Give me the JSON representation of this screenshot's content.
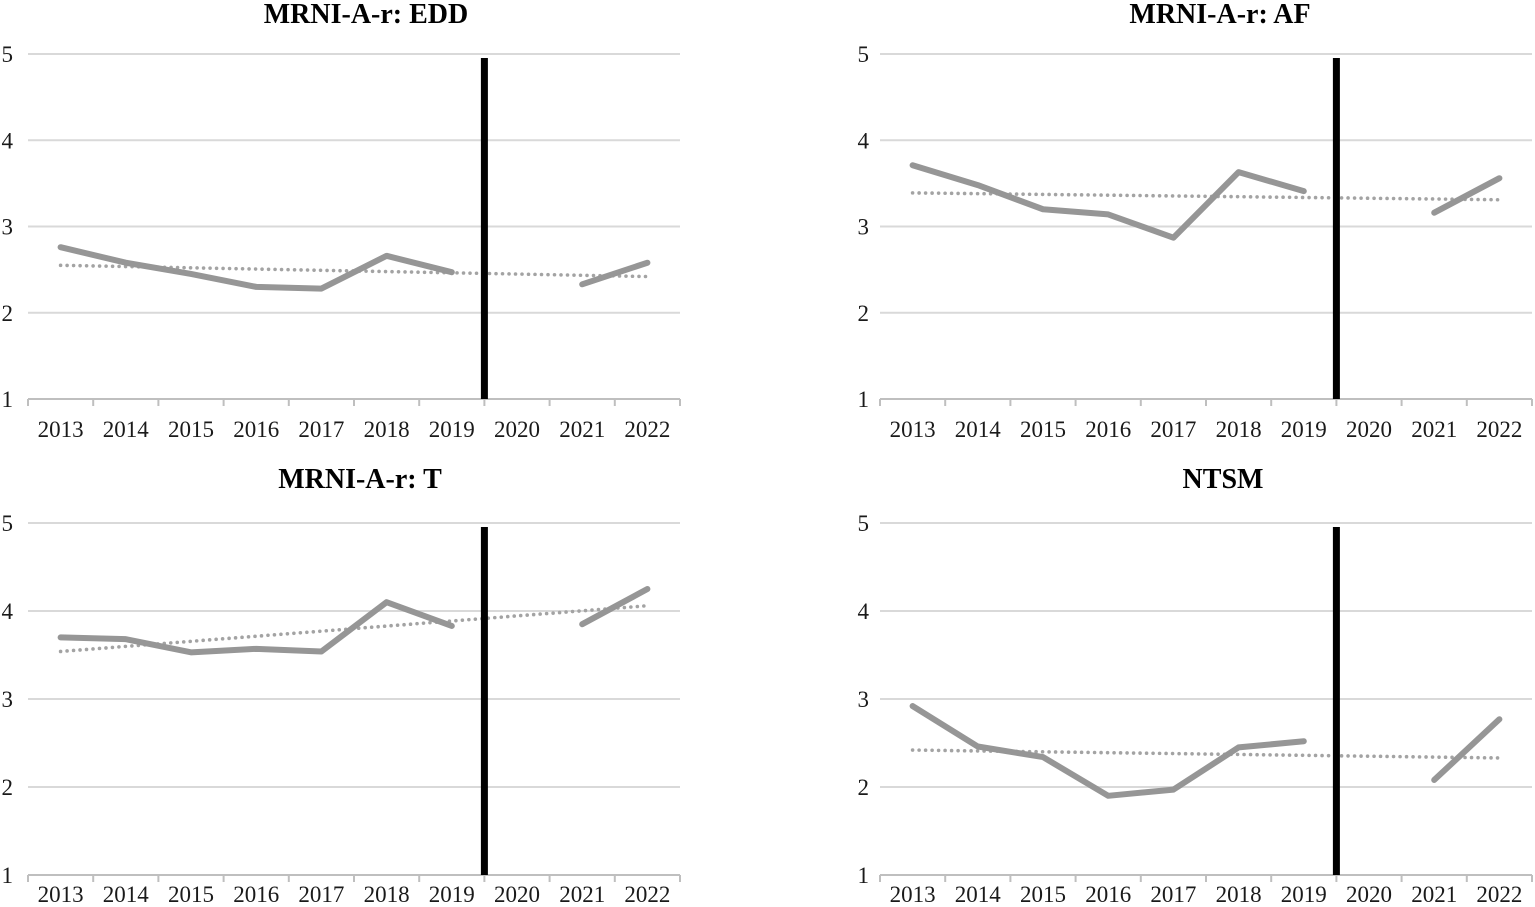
{
  "figure_background": "#ffffff",
  "colors": {
    "observed_line": "#969696",
    "trend_line": "#a3a3a3",
    "gridline": "#d9d9d9",
    "axis_line": "#bfbfbf",
    "divider_line": "#000000",
    "text": "#000000"
  },
  "chart_data": [
    {
      "type": "line",
      "panel": "top-left",
      "title": "MRNI-A-r: EDD",
      "categories": [
        "2013",
        "2014",
        "2015",
        "2016",
        "2017",
        "2018",
        "2019",
        "2020",
        "2021",
        "2022"
      ],
      "ylim": [
        1,
        5
      ],
      "yticks": [
        1,
        2,
        3,
        4,
        5
      ],
      "grid": "horizontal",
      "legend": "none",
      "series": [
        {
          "name": "observed",
          "style": "solid",
          "values": [
            2.76,
            2.58,
            2.45,
            2.3,
            2.28,
            2.66,
            2.47,
            null,
            2.33,
            2.58
          ]
        },
        {
          "name": "linear trend",
          "style": "dotted",
          "start": 2.55,
          "end": 2.42
        }
      ],
      "annotations": {
        "vertical_line_between": [
          "2019",
          "2020"
        ]
      }
    },
    {
      "type": "line",
      "panel": "top-right",
      "title": "MRNI-A-r: AF",
      "categories": [
        "2013",
        "2014",
        "2015",
        "2016",
        "2017",
        "2018",
        "2019",
        "2020",
        "2021",
        "2022"
      ],
      "ylim": [
        1,
        5
      ],
      "yticks": [
        1,
        2,
        3,
        4,
        5
      ],
      "grid": "horizontal",
      "legend": "none",
      "series": [
        {
          "name": "observed",
          "style": "solid",
          "values": [
            3.71,
            3.48,
            3.2,
            3.14,
            2.87,
            3.63,
            3.41,
            null,
            3.16,
            3.56
          ]
        },
        {
          "name": "linear trend",
          "style": "dotted",
          "start": 3.39,
          "end": 3.31
        }
      ],
      "annotations": {
        "vertical_line_between": [
          "2019",
          "2020"
        ]
      }
    },
    {
      "type": "line",
      "panel": "bottom-left",
      "title": "MRNI-A-r: T",
      "categories": [
        "2013",
        "2014",
        "2015",
        "2016",
        "2017",
        "2018",
        "2019",
        "2020",
        "2021",
        "2022"
      ],
      "ylim": [
        1,
        5
      ],
      "yticks": [
        1,
        2,
        3,
        4,
        5
      ],
      "grid": "horizontal",
      "legend": "none",
      "series": [
        {
          "name": "observed",
          "style": "solid",
          "values": [
            3.7,
            3.68,
            3.53,
            3.57,
            3.54,
            4.1,
            3.83,
            null,
            3.85,
            4.25
          ]
        },
        {
          "name": "linear trend",
          "style": "dotted",
          "start": 3.54,
          "end": 4.06
        }
      ],
      "annotations": {
        "vertical_line_between": [
          "2019",
          "2020"
        ]
      }
    },
    {
      "type": "line",
      "panel": "bottom-right",
      "title": "NTSM",
      "categories": [
        "2013",
        "2014",
        "2015",
        "2016",
        "2017",
        "2018",
        "2019",
        "2020",
        "2021",
        "2022"
      ],
      "ylim": [
        1,
        5
      ],
      "yticks": [
        1,
        2,
        3,
        4,
        5
      ],
      "grid": "horizontal",
      "legend": "none",
      "series": [
        {
          "name": "observed",
          "style": "solid",
          "values": [
            2.92,
            2.46,
            2.34,
            1.9,
            1.97,
            2.45,
            2.52,
            null,
            2.08,
            2.77
          ]
        },
        {
          "name": "linear trend",
          "style": "dotted",
          "start": 2.42,
          "end": 2.33
        }
      ],
      "annotations": {
        "vertical_line_between": [
          "2019",
          "2020"
        ]
      }
    }
  ]
}
